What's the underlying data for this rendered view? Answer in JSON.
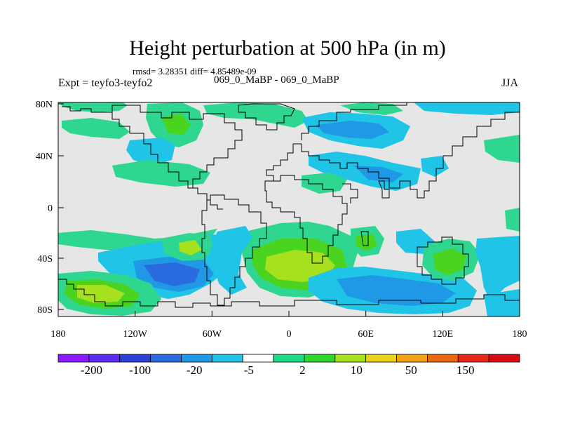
{
  "figure": {
    "title": "Height perturbation at 500 hPa (in m)",
    "stats": "rmsd= 3.28351 diff= 4.85489e-09",
    "experiment": "Expt = teyfo3-teyfo2",
    "center_label": "069_0_MaBP - 069_0_MaBP",
    "season": "JJA"
  },
  "map": {
    "projection": "cylindrical equidistant",
    "lon_range": [
      -180,
      180
    ],
    "lat_range": [
      -90,
      90
    ],
    "lon_tick_labels": [
      "180",
      "120W",
      "60W",
      "0",
      "60E",
      "120E",
      "180"
    ],
    "lat_tick_labels": [
      "80N",
      "40N",
      "0",
      "40S",
      "80S"
    ],
    "background_color": "#e6e6e6"
  },
  "colorbar": {
    "colors": [
      "#8c1aff",
      "#5a2cf0",
      "#2c3fd9",
      "#2b6be0",
      "#1f98e6",
      "#21c4e6",
      "#ffffff",
      "#1fdb8a",
      "#2ed62e",
      "#a6e01f",
      "#e8d21a",
      "#f0a414",
      "#ea6610",
      "#e52a1c",
      "#d90a14"
    ],
    "labels": [
      "-200",
      "-100",
      "-20",
      "-5",
      "2",
      "10",
      "50",
      "150"
    ]
  }
}
